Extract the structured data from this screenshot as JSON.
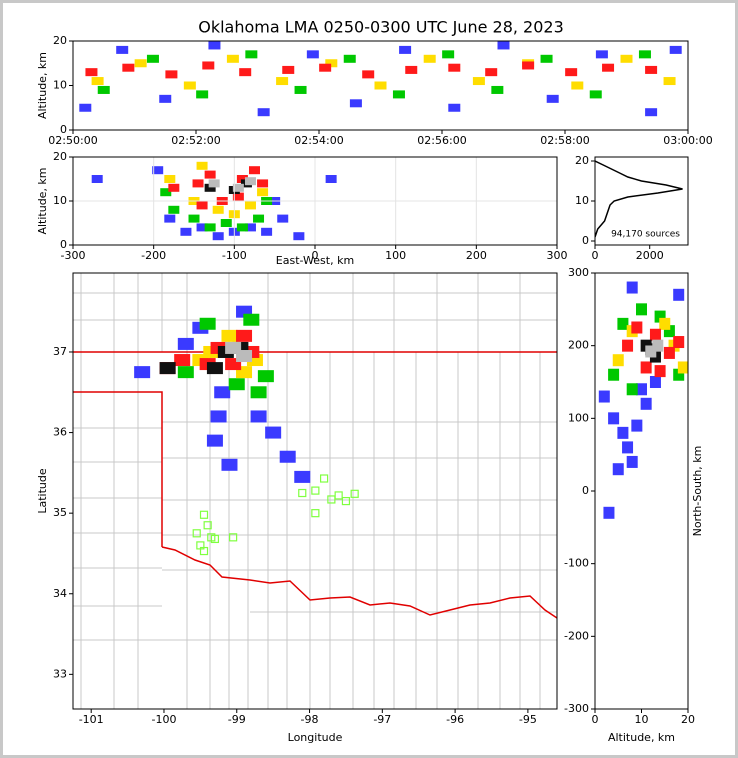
{
  "chart_data": [
    {
      "type": "scatter",
      "title": "Oklahoma LMA 0250-0300 UTC June 28, 2023",
      "ylabel": "Altitude, km",
      "xlim": [
        0,
        10
      ],
      "ylim": [
        0,
        20
      ],
      "xticks": [
        {
          "value": 0,
          "label": "02:50:00"
        },
        {
          "value": 2,
          "label": "02:52:00"
        },
        {
          "value": 4,
          "label": "02:54:00"
        },
        {
          "value": 6,
          "label": "02:56:00"
        },
        {
          "value": 8,
          "label": "02:58:00"
        },
        {
          "value": 10,
          "label": "03:00:00"
        }
      ],
      "yticks": [
        0,
        10,
        20
      ],
      "grid": false,
      "series": [
        {
          "color": "#3a3aff",
          "x": [
            0.2,
            0.8,
            1.5,
            2.3,
            3.1,
            3.9,
            4.6,
            5.4,
            6.2,
            7.0,
            7.8,
            8.6,
            9.4,
            9.8
          ],
          "values": [
            5,
            18,
            7,
            19,
            4,
            17,
            6,
            18,
            5,
            19,
            7,
            17,
            4,
            18
          ]
        },
        {
          "color": "#00c800",
          "x": [
            0.5,
            1.3,
            2.1,
            2.9,
            3.7,
            4.5,
            5.3,
            6.1,
            6.9,
            7.7,
            8.5,
            9.3
          ],
          "values": [
            9,
            16,
            8,
            17,
            9,
            16,
            8,
            17,
            9,
            16,
            8,
            17
          ]
        },
        {
          "color": "#ffdd00",
          "x": [
            0.4,
            1.1,
            1.9,
            2.6,
            3.4,
            4.2,
            5.0,
            5.8,
            6.6,
            7.4,
            8.2,
            9.0,
            9.7
          ],
          "values": [
            11,
            15,
            10,
            16,
            11,
            15,
            10,
            16,
            11,
            15,
            10,
            16,
            11
          ]
        },
        {
          "color": "#ff1a1a",
          "x": [
            0.3,
            0.9,
            1.6,
            2.2,
            2.8,
            3.5,
            4.1,
            4.8,
            5.5,
            6.2,
            6.8,
            7.4,
            8.1,
            8.7,
            9.4
          ],
          "values": [
            13,
            14,
            12.5,
            14.5,
            13,
            13.5,
            14,
            12.5,
            13.5,
            14,
            13,
            14.5,
            13,
            14,
            13.5
          ]
        }
      ]
    },
    {
      "type": "scatter",
      "xlabel": "East-West, km",
      "ylabel": "Altitude, km",
      "xlim": [
        -300,
        300
      ],
      "ylim": [
        0,
        20
      ],
      "xticks": [
        -300,
        -200,
        -100,
        0,
        100,
        200,
        300
      ],
      "yticks": [
        0,
        10,
        20
      ],
      "grid": true,
      "series": [
        {
          "color": "#3a3aff",
          "x": [
            -195,
            -180,
            -160,
            -140,
            -120,
            -100,
            -80,
            -60,
            -50,
            -40,
            -20,
            -270,
            20
          ],
          "values": [
            17,
            6,
            3,
            4,
            2,
            3,
            4,
            3,
            10,
            6,
            2,
            15,
            15
          ]
        },
        {
          "color": "#00c800",
          "x": [
            -185,
            -175,
            -150,
            -130,
            -110,
            -90,
            -70,
            -60
          ],
          "values": [
            12,
            8,
            6,
            4,
            5,
            4,
            6,
            10
          ]
        },
        {
          "color": "#ffdd00",
          "x": [
            -180,
            -150,
            -140,
            -120,
            -100,
            -80,
            -65
          ],
          "values": [
            15,
            10,
            18,
            8,
            7,
            9,
            12
          ]
        },
        {
          "color": "#ff1a1a",
          "x": [
            -175,
            -145,
            -130,
            -115,
            -95,
            -75,
            -65,
            -140,
            -90
          ],
          "values": [
            13,
            14,
            16,
            10,
            11,
            17,
            14,
            9,
            15
          ]
        },
        {
          "color": "#111111",
          "x": [
            -130,
            -100,
            -85
          ],
          "values": [
            13,
            12.5,
            14
          ]
        },
        {
          "color": "#bbbbbb",
          "x": [
            -125,
            -95,
            -80
          ],
          "values": [
            14,
            13,
            14.5
          ]
        }
      ]
    },
    {
      "type": "line",
      "annotation": "94,170 sources",
      "xlim": [
        0,
        3400
      ],
      "ylim": [
        -1,
        21
      ],
      "xticks": [
        0,
        2000
      ],
      "yticks": [
        0,
        10,
        20
      ],
      "grid": false,
      "series": [
        {
          "color": "#000000",
          "x": [
            0,
            100,
            350,
            450,
            550,
            700,
            1200,
            2300,
            3200,
            2600,
            1700,
            1200,
            900,
            600,
            300,
            0
          ],
          "values": [
            1,
            3,
            5,
            7,
            9,
            10,
            11,
            12,
            13,
            14,
            15,
            16,
            17,
            18,
            19,
            20
          ]
        }
      ]
    },
    {
      "type": "scatter",
      "xlabel": "Longitude",
      "ylabel": "Latitude",
      "xlim": [
        -101.25,
        -94.6
      ],
      "ylim": [
        32.57,
        37.98
      ],
      "xticks": [
        -101,
        -100,
        -99,
        -98,
        -97,
        -96,
        -95
      ],
      "yticks": [
        33,
        34,
        35,
        36,
        37
      ],
      "grid": false,
      "series": [
        {
          "color": "#3a3aff",
          "x": [
            -99.5,
            -99.2,
            -99.3,
            -99.1,
            -98.7,
            -98.5,
            -98.3,
            -98.1,
            -99.7,
            -98.9,
            -99.25,
            -100.3
          ],
          "values": [
            37.3,
            36.5,
            35.9,
            35.6,
            36.2,
            36.0,
            35.7,
            35.45,
            37.1,
            37.5,
            36.2,
            36.75
          ]
        },
        {
          "color": "#00c800",
          "x": [
            -99.4,
            -98.8,
            -98.6,
            -99.0,
            -98.7,
            -99.7
          ],
          "values": [
            37.35,
            37.4,
            36.7,
            36.6,
            36.5,
            36.75
          ]
        },
        {
          "color": "#ffdd00",
          "x": [
            -99.35,
            -99.1,
            -98.75,
            -99.5,
            -98.9
          ],
          "values": [
            37.0,
            37.2,
            36.9,
            36.9,
            36.75
          ]
        },
        {
          "color": "#ff1a1a",
          "x": [
            -99.25,
            -98.9,
            -99.4,
            -99.05,
            -98.8,
            -99.75,
            -99.95
          ],
          "values": [
            37.05,
            37.2,
            36.85,
            36.85,
            37.0,
            36.9,
            36.8
          ]
        },
        {
          "color": "#111111",
          "x": [
            -99.15,
            -98.95,
            -99.3,
            -99.95
          ],
          "values": [
            37.0,
            37.05,
            36.8,
            36.8
          ]
        },
        {
          "color": "#bbbbbb",
          "x": [
            -99.05,
            -98.9
          ],
          "values": [
            37.05,
            36.95
          ]
        }
      ],
      "stations": {
        "color": "#7fff3f",
        "x": [
          -99.45,
          -99.4,
          -99.35,
          -99.55,
          -99.3,
          -99.05,
          -99.5,
          -99.45,
          -97.8,
          -97.92,
          -98.1,
          -97.7,
          -97.6,
          -97.5,
          -97.38,
          -97.92
        ],
        "values": [
          34.98,
          34.85,
          34.7,
          34.75,
          34.68,
          34.7,
          34.6,
          34.53,
          35.43,
          35.28,
          35.25,
          35.17,
          35.22,
          35.15,
          35.24,
          35.0
        ]
      }
    },
    {
      "type": "scatter",
      "xlabel": "Altitude, km",
      "ylabel": "North-South, km",
      "xlim": [
        0,
        20
      ],
      "ylim": [
        -300,
        300
      ],
      "xticks": [
        0,
        10,
        20
      ],
      "yticks": [
        -300,
        -200,
        -100,
        0,
        100,
        200,
        300
      ],
      "grid": false,
      "series": [
        {
          "color": "#3a3aff",
          "x": [
            3,
            5,
            7,
            9,
            11,
            4,
            6,
            8,
            2,
            10,
            13,
            18,
            8
          ],
          "values": [
            -30,
            30,
            60,
            90,
            120,
            100,
            80,
            40,
            130,
            140,
            150,
            270,
            280
          ]
        },
        {
          "color": "#00c800",
          "x": [
            4,
            6,
            10,
            14,
            18,
            8,
            16
          ],
          "values": [
            160,
            230,
            250,
            240,
            160,
            140,
            220
          ]
        },
        {
          "color": "#ffdd00",
          "x": [
            5,
            8,
            15,
            17,
            19
          ],
          "values": [
            180,
            220,
            230,
            200,
            170
          ]
        },
        {
          "color": "#ff1a1a",
          "x": [
            7,
            9,
            13,
            16,
            18,
            11,
            14
          ],
          "values": [
            200,
            225,
            215,
            190,
            205,
            170,
            165
          ]
        },
        {
          "color": "#111111",
          "x": [
            11,
            13,
            12
          ],
          "values": [
            200,
            185,
            195
          ]
        },
        {
          "color": "#bbbbbb",
          "x": [
            12,
            13.5
          ],
          "values": [
            192,
            200
          ]
        }
      ]
    }
  ]
}
